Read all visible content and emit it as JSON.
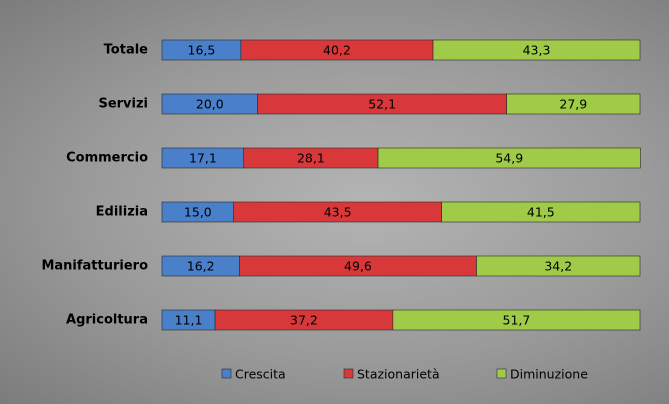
{
  "chart_data": {
    "type": "stacked-bar-horizontal",
    "categories": [
      "Totale",
      "Servizi",
      "Commercio",
      "Edilizia",
      "Manifatturiero",
      "Agricoltura"
    ],
    "xlim": [
      0,
      100
    ],
    "legend": "bottom",
    "series": [
      {
        "name": "Crescita",
        "color": "#4a7fc9",
        "values": [
          16.5,
          20.0,
          17.1,
          15.0,
          16.2,
          11.1
        ],
        "value_labels": [
          "16,5",
          "20,0",
          "17,1",
          "15,0",
          "16,2",
          "11,1"
        ]
      },
      {
        "name": "Stazionarietà",
        "color": "#d9383a",
        "values": [
          40.2,
          52.1,
          28.1,
          43.5,
          49.6,
          37.2
        ],
        "value_labels": [
          "40,2",
          "52,1",
          "28,1",
          "43,5",
          "49,6",
          "37,2"
        ]
      },
      {
        "name": "Diminuzione",
        "color": "#9fcb48",
        "values": [
          43.3,
          27.9,
          54.9,
          41.5,
          34.2,
          51.7
        ],
        "value_labels": [
          "43,3",
          "27,9",
          "54,9",
          "41,5",
          "34,2",
          "51,7"
        ]
      }
    ]
  }
}
